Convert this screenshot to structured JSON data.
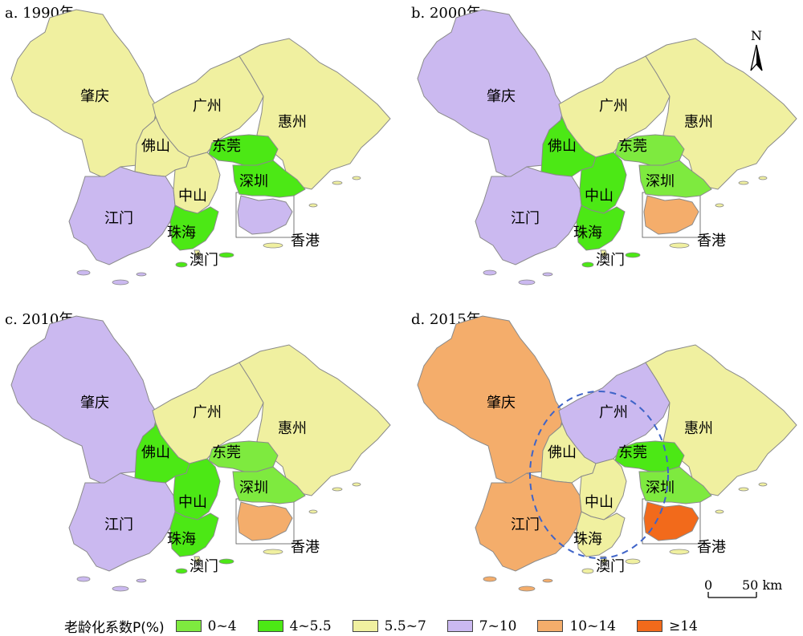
{
  "panels": [
    {
      "title": "a. 1990年",
      "classes": {
        "zhaoqing": "5.5~7",
        "guangzhou": "5.5~7",
        "huizhou": "5.5~7",
        "foshan": "5.5~7",
        "dongguan": "4~5.5",
        "shenzhen": "4~5.5",
        "jiangmen": "7~10",
        "zhongshan": "5.5~7",
        "zhuhai": "4~5.5",
        "hongkong": "7~10",
        "macao": "5.5~7"
      }
    },
    {
      "title": "b. 2000年",
      "classes": {
        "zhaoqing": "7~10",
        "guangzhou": "5.5~7",
        "huizhou": "5.5~7",
        "foshan": "4~5.5",
        "dongguan": "0~4",
        "shenzhen": "0~4",
        "jiangmen": "7~10",
        "zhongshan": "4~5.5",
        "zhuhai": "4~5.5",
        "hongkong": "10~14",
        "macao": "5.5~7"
      }
    },
    {
      "title": "c. 2010年",
      "classes": {
        "zhaoqing": "7~10",
        "guangzhou": "5.5~7",
        "huizhou": "5.5~7",
        "foshan": "4~5.5",
        "dongguan": "0~4",
        "shenzhen": "0~4",
        "jiangmen": "7~10",
        "zhongshan": "4~5.5",
        "zhuhai": "4~5.5",
        "hongkong": "10~14",
        "macao": "5.5~7"
      }
    },
    {
      "title": "d. 2015年",
      "classes": {
        "zhaoqing": "10~14",
        "guangzhou": "7~10",
        "huizhou": "5.5~7",
        "foshan": "5.5~7",
        "dongguan": "4~5.5",
        "shenzhen": "0~4",
        "jiangmen": "10~14",
        "zhongshan": "5.5~7",
        "zhuhai": "5.5~7",
        "hongkong": "≥14",
        "macao": "5.5~7"
      }
    }
  ],
  "city_names": {
    "zhaoqing": "肇庆",
    "guangzhou": "广州",
    "huizhou": "惠州",
    "foshan": "佛山",
    "dongguan": "东莞",
    "shenzhen": "深圳",
    "jiangmen": "江门",
    "zhongshan": "中山",
    "zhuhai": "珠海",
    "macao": "澳门",
    "hongkong": "香港"
  },
  "legend": {
    "title": "老龄化系数P(%)",
    "items": [
      {
        "label": "0~4",
        "color": "#7eea3f"
      },
      {
        "label": "4~5.5",
        "color": "#4ce815"
      },
      {
        "label": "5.5~7",
        "color": "#f0f0a0"
      },
      {
        "label": "7~10",
        "color": "#cbb9f0"
      },
      {
        "label": "10~14",
        "color": "#f4ad6b"
      },
      {
        "label": "≥14",
        "color": "#f26a1b"
      }
    ]
  },
  "north_arrow": {
    "label": "N"
  },
  "scale_bar": {
    "start": "0",
    "end": "50 km"
  },
  "colors": {
    "border": "#8a8a8a",
    "highlight_ring": "#3f64c8"
  }
}
